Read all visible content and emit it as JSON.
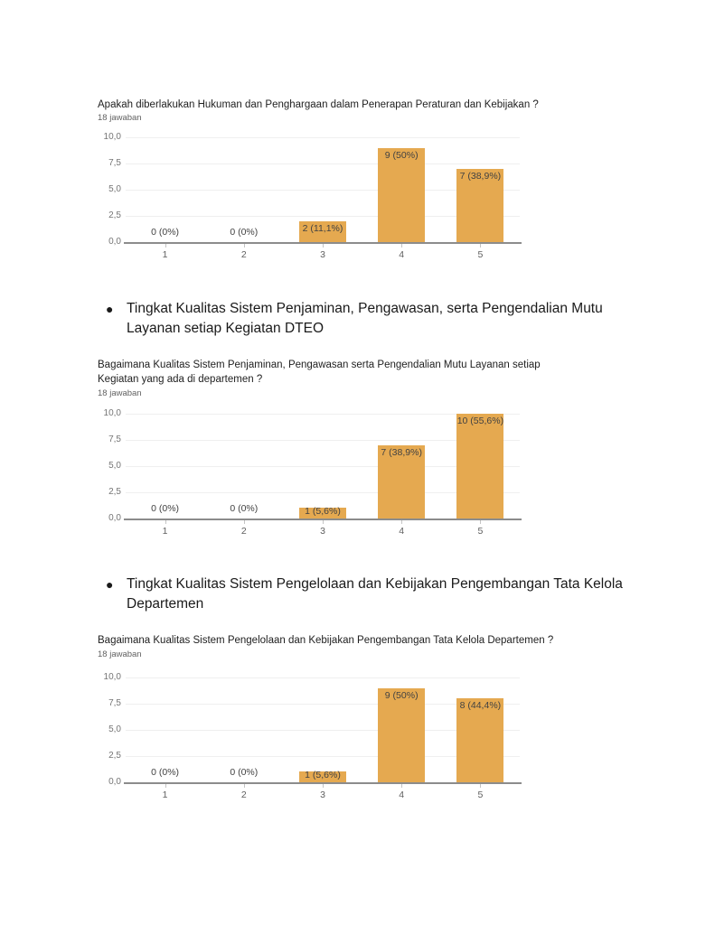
{
  "bullets": [
    {
      "text": "Tingkat Kualitas Sistem Penjaminan, Pengawasan, serta Pengendalian Mutu Layanan setiap Kegiatan DTEO"
    },
    {
      "text": "Tingkat Kualitas Sistem Pengelolaan dan Kebijakan Pengembangan Tata Kelola Departemen"
    }
  ],
  "chart_data": [
    {
      "type": "bar",
      "title": "Apakah diberlakukan Hukuman dan Penghargaan dalam Penerapan Peraturan dan Kebijakan ?",
      "subtitle": "18 jawaban",
      "categories": [
        "1",
        "2",
        "3",
        "4",
        "5"
      ],
      "values": [
        0,
        0,
        2,
        9,
        7
      ],
      "labels": [
        "0 (0%)",
        "0 (0%)",
        "2 (11,1%)",
        "9 (50%)",
        "7 (38,9%)"
      ],
      "ylim": [
        0,
        10
      ],
      "yticks": [
        0,
        2.5,
        5,
        7.5,
        10
      ],
      "ytick_labels": [
        "0,0",
        "2,5",
        "5,0",
        "7,5",
        "10,0"
      ],
      "bar_color": "#E5A950",
      "grid": true,
      "legend": "none",
      "xlabel": "",
      "ylabel": ""
    },
    {
      "type": "bar",
      "title": "Bagaimana Kualitas Sistem Penjaminan, Pengawasan serta Pengendalian Mutu Layanan setiap Kegiatan yang ada di departemen ?",
      "subtitle": "18 jawaban",
      "categories": [
        "1",
        "2",
        "3",
        "4",
        "5"
      ],
      "values": [
        0,
        0,
        1,
        7,
        10
      ],
      "labels": [
        "0 (0%)",
        "0 (0%)",
        "1 (5,6%)",
        "7 (38,9%)",
        "10 (55,6%)"
      ],
      "ylim": [
        0,
        10
      ],
      "yticks": [
        0,
        2.5,
        5,
        7.5,
        10
      ],
      "ytick_labels": [
        "0,0",
        "2,5",
        "5,0",
        "7,5",
        "10,0"
      ],
      "bar_color": "#E5A950",
      "grid": true,
      "legend": "none",
      "xlabel": "",
      "ylabel": ""
    },
    {
      "type": "bar",
      "title": "Bagaimana Kualitas Sistem Pengelolaan dan Kebijakan Pengembangan Tata Kelola Departemen ?",
      "subtitle": "18 jawaban",
      "categories": [
        "1",
        "2",
        "3",
        "4",
        "5"
      ],
      "values": [
        0,
        0,
        1,
        9,
        8
      ],
      "labels": [
        "0 (0%)",
        "0 (0%)",
        "1 (5,6%)",
        "9 (50%)",
        "8 (44,4%)"
      ],
      "ylim": [
        0,
        10
      ],
      "yticks": [
        0,
        2.5,
        5,
        7.5,
        10
      ],
      "ytick_labels": [
        "0,0",
        "2,5",
        "5,0",
        "7,5",
        "10,0"
      ],
      "bar_color": "#E5A950",
      "grid": true,
      "legend": "none",
      "xlabel": "",
      "ylabel": ""
    }
  ]
}
